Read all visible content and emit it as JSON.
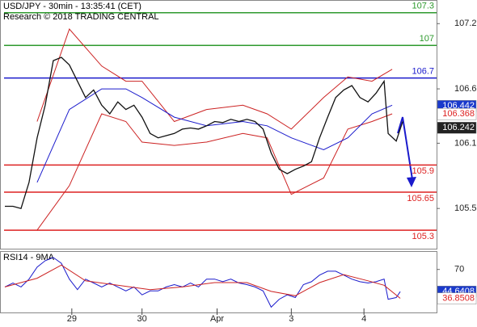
{
  "chart_data": [
    {
      "type": "line",
      "title": "USD/JPY - 30min - 13:35:41 (CET)",
      "subtitle": "Research © 2018 TRADING CENTRAL",
      "xlim": [
        0,
        108
      ],
      "ylim": [
        105.13,
        107.41
      ],
      "yticks": [
        107.2,
        106.6,
        106.1,
        105.5
      ],
      "series": [
        {
          "color": "#cc2222",
          "x": [
            9,
            17,
            25,
            31,
            35,
            43,
            51,
            60,
            66,
            72,
            80,
            86,
            92,
            97
          ],
          "values": [
            106.3,
            107.15,
            106.81,
            106.67,
            106.67,
            106.3,
            106.41,
            106.45,
            106.37,
            106.23,
            106.52,
            106.71,
            106.67,
            106.78
          ]
        },
        {
          "color": "#cc2222",
          "x": [
            9,
            17,
            25,
            31,
            35,
            43,
            51,
            60,
            66,
            72,
            80,
            86,
            92,
            97
          ],
          "values": [
            105.3,
            105.71,
            106.37,
            106.3,
            106.11,
            106.08,
            106.11,
            106.19,
            106.15,
            105.63,
            105.78,
            106.23,
            106.3,
            106.37
          ]
        },
        {
          "color": "#1a1acc",
          "x": [
            9,
            17,
            25,
            31,
            35,
            43,
            51,
            60,
            66,
            72,
            80,
            86,
            92,
            97
          ],
          "values": [
            105.74,
            106.41,
            106.6,
            106.6,
            106.52,
            106.34,
            106.26,
            106.3,
            106.26,
            106.15,
            106.04,
            106.15,
            106.37,
            106.45
          ]
        },
        {
          "color": "#111111",
          "x": [
            1,
            3,
            5,
            7,
            9,
            11,
            13,
            15,
            17,
            19,
            21,
            23,
            25,
            27,
            29,
            31,
            33,
            35,
            37,
            39,
            41,
            43,
            45,
            47,
            49,
            51,
            53,
            55,
            57,
            59,
            61,
            63,
            65,
            67,
            69,
            71,
            73,
            75,
            77,
            79,
            81,
            83,
            85,
            87,
            89,
            91,
            93,
            95,
            96,
            98,
            99.6
          ],
          "values": [
            105.52,
            105.52,
            105.5,
            105.74,
            106.15,
            106.45,
            106.86,
            106.89,
            106.82,
            106.67,
            106.52,
            106.59,
            106.45,
            106.37,
            106.48,
            106.41,
            106.45,
            106.34,
            106.19,
            106.15,
            106.17,
            106.19,
            106.23,
            106.24,
            106.23,
            106.26,
            106.3,
            106.29,
            106.32,
            106.3,
            106.32,
            106.3,
            106.23,
            106.01,
            105.86,
            105.82,
            105.86,
            105.89,
            105.93,
            106.15,
            106.34,
            106.52,
            106.59,
            106.63,
            106.52,
            106.48,
            106.56,
            106.67,
            106.19,
            106.12,
            106.3
          ]
        }
      ],
      "levels": [
        {
          "value": 107.3,
          "color": "#2e9a2e"
        },
        {
          "value": 107,
          "color": "#2e9a2e"
        },
        {
          "value": 106.7,
          "color": "#1a1acc"
        },
        {
          "value": 105.9,
          "color": "#dd2222"
        },
        {
          "value": 105.65,
          "color": "#dd2222"
        },
        {
          "value": 105.3,
          "color": "#dd2222"
        }
      ],
      "markers": [
        {
          "value": 106.442,
          "color": "#1a3acc",
          "text_color": "#ffffff"
        },
        {
          "value": 106.368,
          "color": "#ffffff",
          "text_color": "#dd2222"
        },
        {
          "value": 106.242,
          "color": "#222222",
          "text_color": "#ffffff"
        }
      ]
    },
    {
      "type": "line",
      "title": "RSI14 - 9MA",
      "xlim": [
        0,
        108
      ],
      "ylim": [
        20,
        90
      ],
      "yticks": [
        70
      ],
      "xticks": [
        {
          "value": 17.6,
          "label": "29"
        },
        {
          "value": 35,
          "label": "30"
        },
        {
          "value": 53.6,
          "label": "Apr"
        },
        {
          "value": 72,
          "label": "3"
        },
        {
          "value": 90,
          "label": "4"
        }
      ],
      "series": [
        {
          "color": "#1a1acc",
          "x": [
            1,
            3,
            5,
            7,
            9,
            11,
            13,
            15,
            17,
            19,
            21,
            23,
            25,
            27,
            29,
            31,
            33,
            35,
            37,
            39,
            41,
            43,
            45,
            47,
            49,
            51,
            53,
            55,
            57,
            59,
            61,
            63,
            65,
            67,
            69,
            71,
            73,
            75,
            77,
            79,
            81,
            83,
            85,
            87,
            89,
            91,
            93,
            95,
            96,
            98,
            99
          ],
          "values": [
            50,
            54.5,
            50,
            59,
            72.7,
            80,
            83.6,
            77,
            59,
            47,
            59,
            54.5,
            50,
            54.5,
            50,
            45.5,
            50,
            41,
            45.5,
            45.5,
            50,
            52.7,
            50,
            54.5,
            50,
            59,
            59,
            56,
            59,
            54.5,
            52.7,
            50,
            45.5,
            27,
            36,
            41,
            38,
            52.7,
            56,
            63.6,
            68,
            68,
            63.6,
            59,
            56,
            54.5,
            56,
            59,
            36,
            38,
            44.64
          ]
        },
        {
          "color": "#cc2222",
          "x": [
            1,
            9,
            15,
            21,
            29,
            37,
            45,
            53,
            61,
            67,
            73,
            79,
            85,
            91,
            95,
            99
          ],
          "values": [
            50,
            60,
            75,
            57,
            52,
            47,
            50,
            55,
            55,
            45,
            40,
            55,
            64,
            57,
            52,
            37
          ]
        }
      ],
      "markers": [
        {
          "value": 44.6408,
          "color": "#1a3acc",
          "text_color": "#ffffff"
        },
        {
          "value": 36.8508,
          "color": "#ffffff",
          "text_color": "#dd2222"
        }
      ]
    }
  ]
}
